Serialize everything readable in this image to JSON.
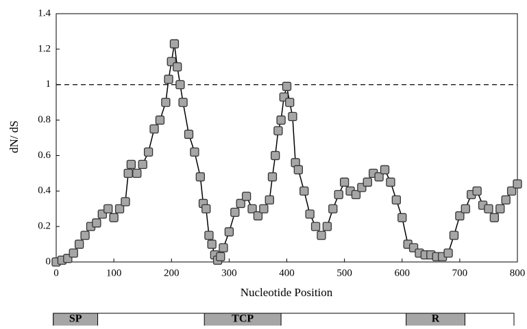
{
  "chart_data": {
    "type": "line",
    "xlabel": "Nucleotide Position",
    "ylabel": "dN/ dS",
    "x": [
      0,
      10,
      20,
      30,
      40,
      50,
      60,
      70,
      80,
      90,
      100,
      110,
      120,
      125,
      130,
      140,
      150,
      160,
      170,
      180,
      190,
      195,
      200,
      205,
      210,
      215,
      220,
      230,
      240,
      250,
      255,
      260,
      265,
      270,
      275,
      280,
      285,
      290,
      300,
      310,
      320,
      330,
      340,
      350,
      360,
      370,
      375,
      380,
      385,
      390,
      395,
      400,
      405,
      410,
      415,
      420,
      430,
      440,
      450,
      460,
      470,
      480,
      490,
      500,
      510,
      520,
      530,
      540,
      550,
      560,
      570,
      580,
      590,
      600,
      610,
      620,
      630,
      640,
      650,
      660,
      670,
      680,
      690,
      700,
      710,
      720,
      730,
      740,
      750,
      760,
      770,
      780,
      790,
      800
    ],
    "series": [
      {
        "name": "dN/dS",
        "color": "#a6a6a6",
        "values": [
          0,
          0.01,
          0.02,
          0.05,
          0.1,
          0.15,
          0.2,
          0.22,
          0.27,
          0.3,
          0.25,
          0.3,
          0.34,
          0.5,
          0.55,
          0.5,
          0.55,
          0.62,
          0.75,
          0.8,
          0.9,
          1.03,
          1.13,
          1.23,
          1.1,
          1.0,
          0.9,
          0.72,
          0.62,
          0.48,
          0.33,
          0.3,
          0.15,
          0.1,
          0.04,
          0.01,
          0.03,
          0.08,
          0.17,
          0.28,
          0.33,
          0.37,
          0.3,
          0.26,
          0.3,
          0.35,
          0.48,
          0.6,
          0.74,
          0.8,
          0.93,
          0.99,
          0.9,
          0.82,
          0.56,
          0.52,
          0.4,
          0.27,
          0.2,
          0.15,
          0.2,
          0.3,
          0.38,
          0.45,
          0.4,
          0.38,
          0.42,
          0.45,
          0.5,
          0.48,
          0.52,
          0.45,
          0.35,
          0.25,
          0.1,
          0.08,
          0.05,
          0.04,
          0.04,
          0.03,
          0.03,
          0.05,
          0.15,
          0.26,
          0.3,
          0.38,
          0.4,
          0.32,
          0.3,
          0.25,
          0.3,
          0.35,
          0.4,
          0.44
        ]
      }
    ],
    "reference_line": 1,
    "xlim": [
      0,
      800
    ],
    "xticks": [
      0,
      100,
      200,
      300,
      400,
      500,
      600,
      700,
      800
    ],
    "ylim": [
      0,
      1.4
    ],
    "yticks": [
      0,
      0.2,
      0.4,
      0.6,
      0.8,
      1,
      1.2,
      1.4
    ],
    "domains": [
      {
        "label": "SP",
        "start": -5,
        "end": 72
      },
      {
        "label": "TCP",
        "start": 257,
        "end": 390
      },
      {
        "label": "R",
        "start": 607,
        "end": 709
      }
    ]
  }
}
